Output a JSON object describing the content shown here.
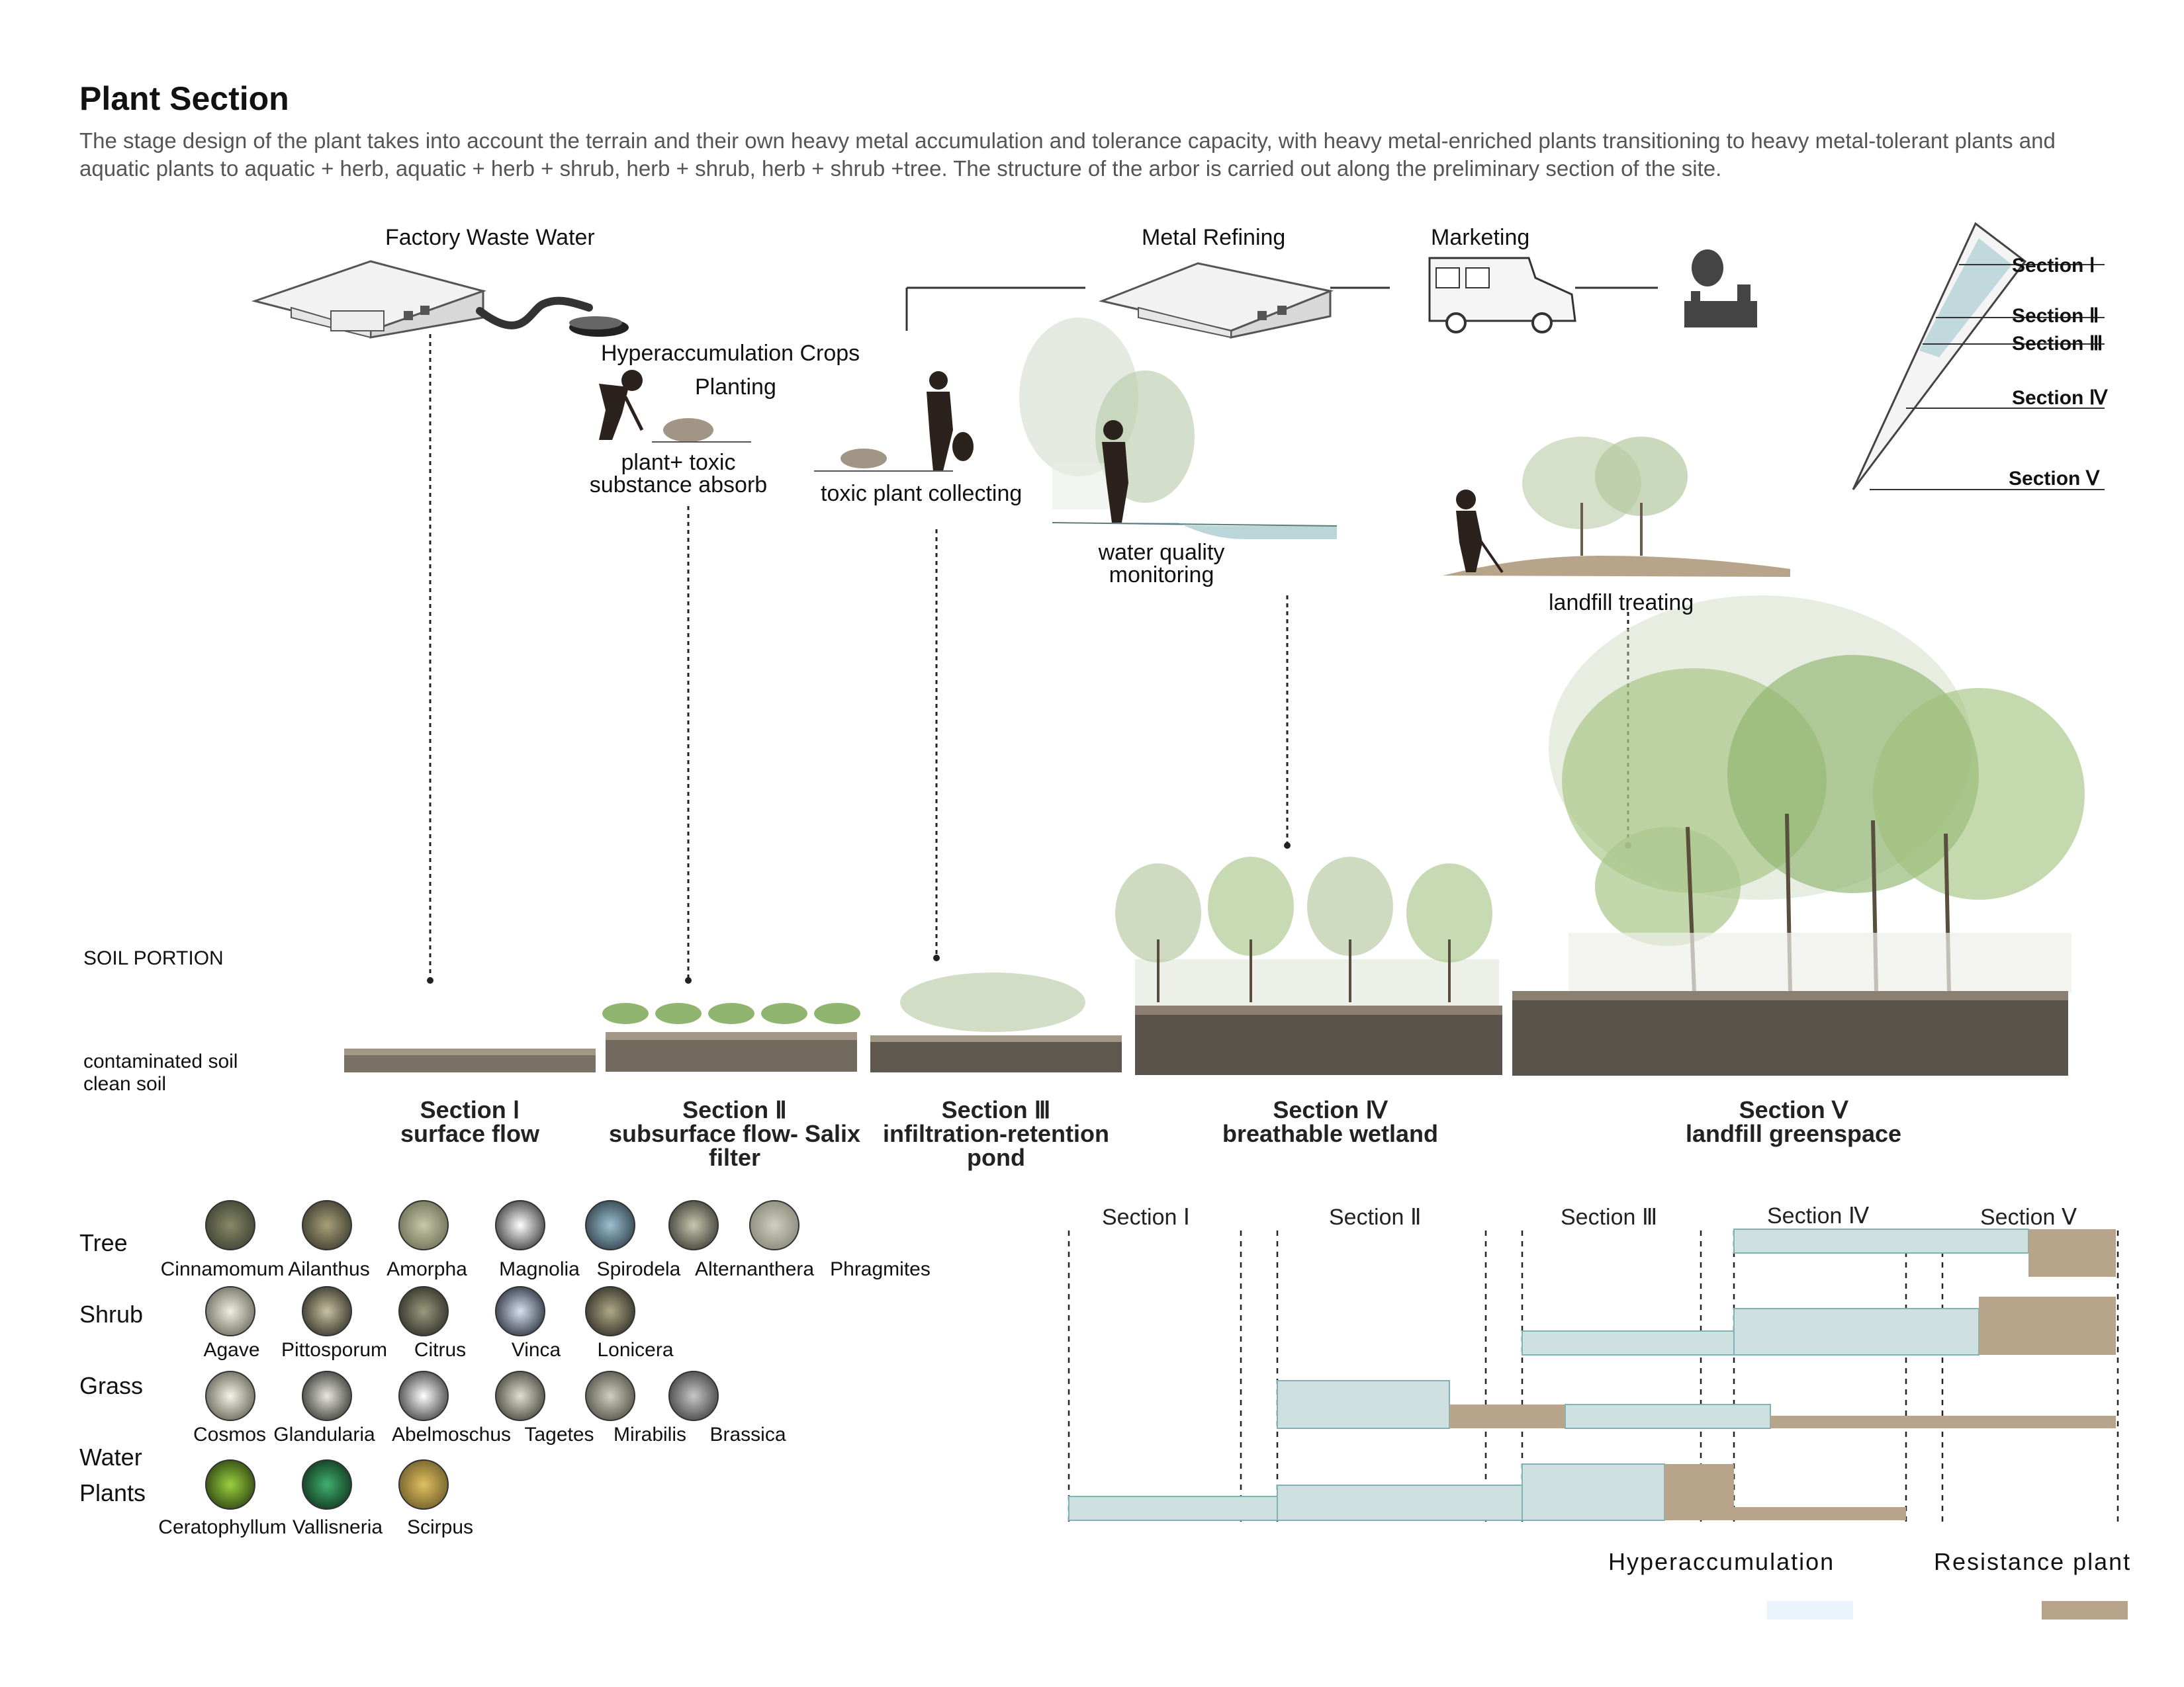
{
  "header": {
    "title": "Plant Section",
    "description": " The stage design of the plant takes into account the terrain and their own heavy metal accumulation and tolerance capacity, with heavy metal-enriched plants transitioning to heavy metal-tolerant plants and aquatic plants to aquatic + herb, aquatic + herb + shrub, herb + shrub, herb + shrub +tree. The structure of the arbor is carried out along the preliminary section of the site."
  },
  "process": {
    "factory_waste_water": "Factory Waste Water",
    "hyperaccumulation_crops": "Hyperaccumulation Crops",
    "planting": "Planting",
    "plant_toxic_1": "plant+ toxic",
    "plant_toxic_2": "substance absorb",
    "toxic_collecting": "toxic plant collecting",
    "metal_refining": "Metal Refining",
    "marketing": "Marketing",
    "water_quality_1": "water quality",
    "water_quality_2": "monitoring",
    "landfill_treating": "landfill treating"
  },
  "site_map": {
    "sections": [
      "Section Ⅰ",
      "Section Ⅱ",
      "Section Ⅲ",
      "Section Ⅳ",
      "Section Ⅴ"
    ]
  },
  "soil": {
    "soil_portion": "SOIL PORTION",
    "contaminated_soil": "contaminated soil",
    "clean_soil": "clean soil"
  },
  "section_captions": [
    {
      "name": "Section Ⅰ",
      "desc": "surface flow",
      "desc2": ""
    },
    {
      "name": "Section Ⅱ",
      "desc": "subsurface flow- Salix",
      "desc2": "filter"
    },
    {
      "name": "Section Ⅲ",
      "desc": "infiltration-retention",
      "desc2": "pond"
    },
    {
      "name": "Section Ⅳ",
      "desc": "breathable wetland",
      "desc2": ""
    },
    {
      "name": "Section Ⅴ",
      "desc": "landfill greenspace",
      "desc2": ""
    }
  ],
  "plant_list": {
    "categories": [
      {
        "label": "Tree",
        "label2": "",
        "plants": [
          "Cinnamomum",
          "Ailanthus",
          "Amorpha",
          "Magnolia",
          "Spirodela",
          "Alternanthera",
          "Phragmites"
        ]
      },
      {
        "label": "Shrub",
        "label2": "",
        "plants": [
          "Agave",
          "Pittosporum",
          "Citrus",
          "Vinca",
          "Lonicera"
        ]
      },
      {
        "label": "Grass",
        "label2": "",
        "plants": [
          "Cosmos",
          "Glandularia",
          "Abelmoschus",
          "Tagetes",
          "Mirabilis",
          "Brassica"
        ]
      },
      {
        "label": "Water",
        "label2": "Plants",
        "plants": [
          "Ceratophyllum",
          "Vallisneria",
          "Scirpus"
        ]
      }
    ]
  },
  "distribution_chart": {
    "sections": [
      "Section Ⅰ",
      "Section Ⅱ",
      "Section Ⅲ",
      "Section Ⅳ",
      "Section Ⅴ"
    ],
    "legend": {
      "hyper_label": "Hyperaccumulation",
      "resist_label": "Resistance plant",
      "hyper_color": "#cfe0e1",
      "resist_color": "#b8a48a"
    }
  },
  "colors": {
    "soil_dark": "#5a544c",
    "soil_top": "#8a7f70",
    "foliage": "#9fbf7a",
    "water": "#bcd5d8",
    "mound": "#b8a48a"
  }
}
